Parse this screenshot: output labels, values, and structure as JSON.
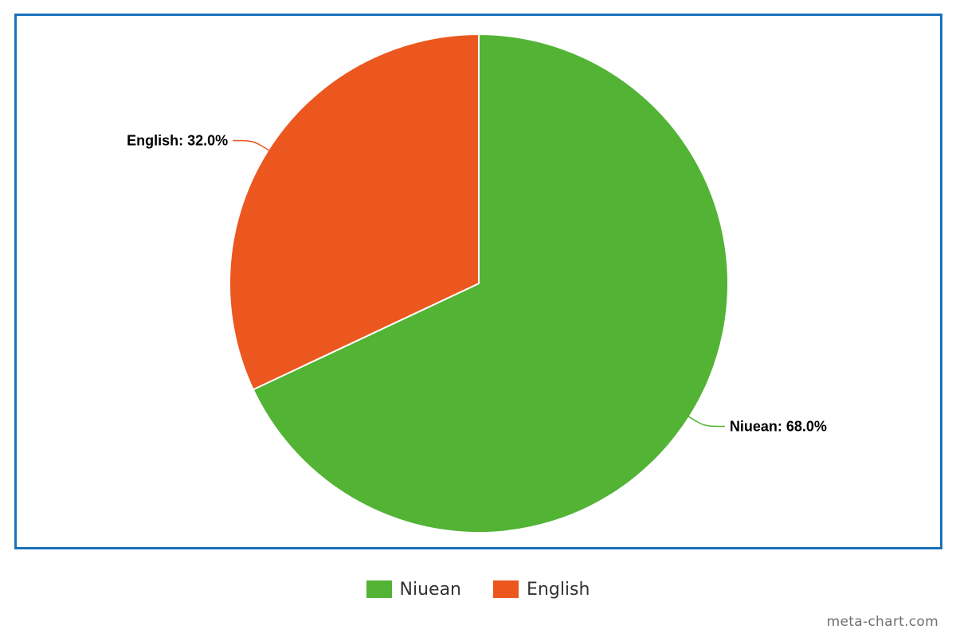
{
  "chart_data": {
    "type": "pie",
    "title": "",
    "series": [
      {
        "name": "Niuean",
        "value": 68.0,
        "label": "Niuean: 68.0%",
        "color": "#52b335"
      },
      {
        "name": "English",
        "value": 32.0,
        "label": "English: 32.0%",
        "color": "#eb571e"
      }
    ],
    "legend": {
      "placement": "bottom-center",
      "items": [
        "Niuean",
        "English"
      ]
    },
    "frame_color": "#1a72bb"
  },
  "watermark": "meta-chart.com"
}
